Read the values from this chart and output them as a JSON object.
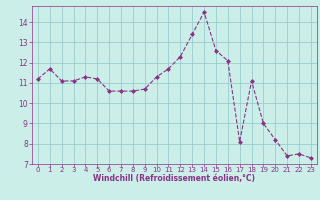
{
  "x": [
    0,
    1,
    2,
    3,
    4,
    5,
    6,
    7,
    8,
    9,
    10,
    11,
    12,
    13,
    14,
    15,
    16,
    17,
    18,
    19,
    20,
    21,
    22,
    23
  ],
  "y": [
    11.2,
    11.7,
    11.1,
    11.1,
    11.3,
    11.2,
    10.6,
    10.6,
    10.6,
    10.7,
    11.3,
    11.7,
    12.3,
    13.4,
    14.5,
    12.6,
    12.1,
    8.1,
    11.1,
    9.0,
    8.2,
    7.4,
    7.5,
    7.3
  ],
  "line_color": "#883388",
  "marker": "D",
  "marker_size": 2.0,
  "bg_color": "#cceee8",
  "grid_color": "#99cccc",
  "xlabel": "Windchill (Refroidissement éolien,°C)",
  "xlabel_color": "#883388",
  "tick_color": "#883388",
  "xlim": [
    -0.5,
    23.5
  ],
  "ylim": [
    7,
    14.8
  ],
  "yticks": [
    7,
    8,
    9,
    10,
    11,
    12,
    13,
    14
  ],
  "xticks": [
    0,
    1,
    2,
    3,
    4,
    5,
    6,
    7,
    8,
    9,
    10,
    11,
    12,
    13,
    14,
    15,
    16,
    17,
    18,
    19,
    20,
    21,
    22,
    23
  ]
}
